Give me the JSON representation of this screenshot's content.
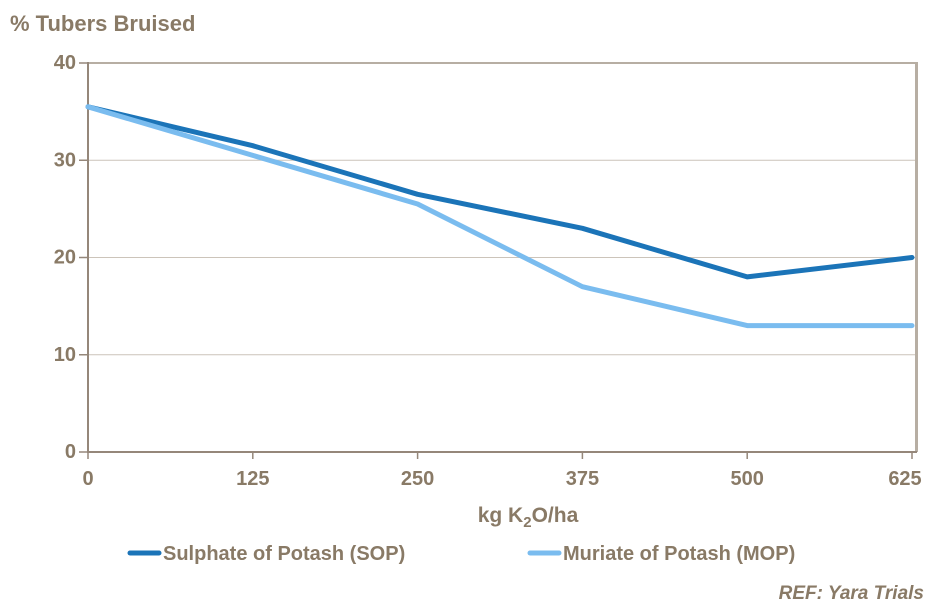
{
  "title": "% Tubers Bruised",
  "source_note": "REF: Yara Trials",
  "x_axis_label": {
    "prefix": "kg K",
    "subscript": "2",
    "suffix": "O/ha"
  },
  "chart_data": {
    "type": "line",
    "title": "% Tubers Bruised",
    "xlabel": "kg K2O/ha",
    "ylabel": "% Tubers Bruised",
    "categories": [
      0,
      125,
      250,
      375,
      500,
      625
    ],
    "series": [
      {
        "name": "Sulphate of Potash (SOP)",
        "color": "#1B74B8",
        "values": [
          35.5,
          31.5,
          26.5,
          23,
          18,
          20
        ]
      },
      {
        "name": "Muriate of Potash (MOP)",
        "color": "#7ABCEF",
        "values": [
          35.5,
          30.5,
          25.5,
          17,
          13,
          13
        ]
      }
    ],
    "ylim": [
      0,
      40
    ],
    "y_ticks": [
      40,
      30,
      20,
      10,
      0
    ],
    "grid": "horizontal-only",
    "legend_position": "bottom",
    "annotations": [
      "REF: Yara Trials"
    ]
  },
  "colors": {
    "text": "#897A66",
    "axis": "#95877A",
    "frame": "#B7AEA3",
    "grid": "#CCC4BA",
    "sop_line": "#1B74B8",
    "mop_line": "#7ABCEF",
    "background": "#FFFFFF"
  }
}
